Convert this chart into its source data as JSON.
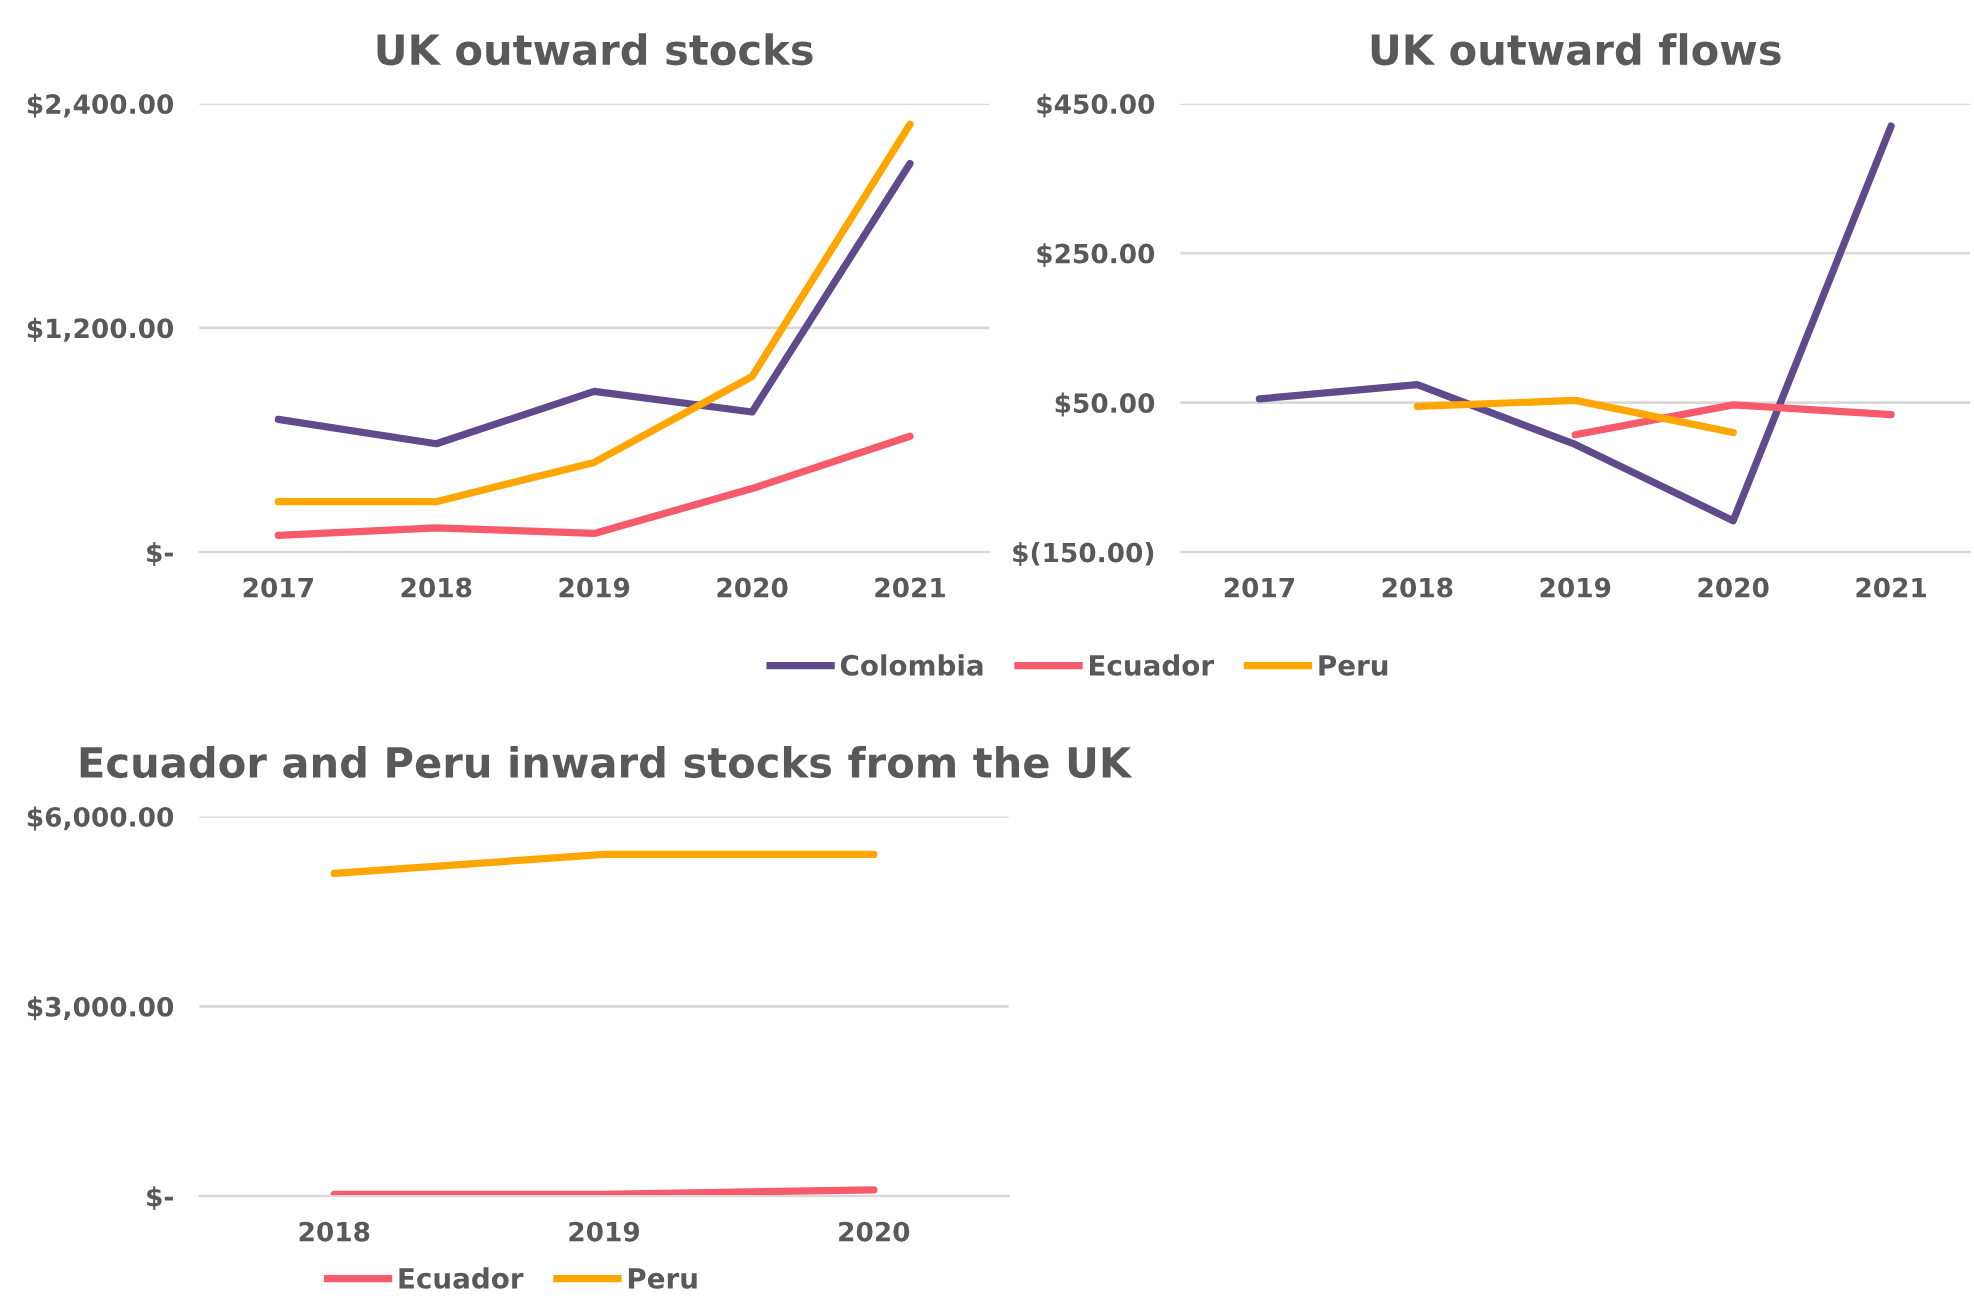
{
  "chart_data": [
    {
      "type": "line",
      "title": "UK outward stocks",
      "categories": [
        "2017",
        "2018",
        "2019",
        "2020",
        "2021"
      ],
      "series": [
        {
          "name": "Colombia",
          "color": "#5f4b8b",
          "values": [
            710,
            580,
            860,
            750,
            2080
          ]
        },
        {
          "name": "Ecuador",
          "color": "#f75a6a",
          "values": [
            90,
            130,
            100,
            340,
            620
          ]
        },
        {
          "name": "Peru",
          "color": "#ffa600",
          "values": [
            270,
            270,
            480,
            940,
            2290
          ]
        }
      ],
      "ylim": [
        0,
        2400
      ],
      "yticks": [
        {
          "value": 0,
          "label": "$-"
        },
        {
          "value": 1200,
          "label": "$1,200.00"
        },
        {
          "value": 2400,
          "label": "$2,400.00"
        }
      ],
      "grid": "y",
      "legend": "bottom",
      "marker": "none",
      "line_style": "solid"
    },
    {
      "type": "line",
      "title": "UK outward flows",
      "categories": [
        "2017",
        "2018",
        "2019",
        "2020",
        "2021"
      ],
      "series": [
        {
          "color": "#5f4b8b",
          "values": [
            55,
            74,
            -6,
            -108,
            420
          ]
        },
        {
          "color": "#f75a6a",
          "values": [
            null,
            null,
            7,
            47,
            34
          ]
        },
        {
          "color": "#ffa600",
          "values": [
            null,
            45,
            53,
            10,
            null
          ]
        }
      ],
      "ylim": [
        -150,
        450
      ],
      "yticks": [
        {
          "value": -150,
          "label": "$(150.00)"
        },
        {
          "value": 50,
          "label": "$50.00"
        },
        {
          "value": 250,
          "label": "$250.00"
        },
        {
          "value": 450,
          "label": "$450.00"
        }
      ],
      "grid": "y",
      "marker": "none",
      "line_style": "solid"
    },
    {
      "type": "line",
      "title": "Ecuador and Peru inward stocks from the UK",
      "categories": [
        "2018",
        "2019",
        "2020"
      ],
      "series": [
        {
          "name": "Ecuador",
          "color": "#f75a6a",
          "values": [
            30,
            30,
            100
          ]
        },
        {
          "name": "Peru",
          "color": "#ffa600",
          "values": [
            5100,
            5400,
            5400
          ]
        }
      ],
      "ylim": [
        0,
        6000
      ],
      "yticks": [
        {
          "value": 0,
          "label": "$-"
        },
        {
          "value": 3000,
          "label": "$3,000.00"
        },
        {
          "value": 6000,
          "label": "$6,000.00"
        }
      ],
      "grid": "y",
      "legend": "bottom",
      "marker": "none",
      "line_style": "solid"
    }
  ]
}
